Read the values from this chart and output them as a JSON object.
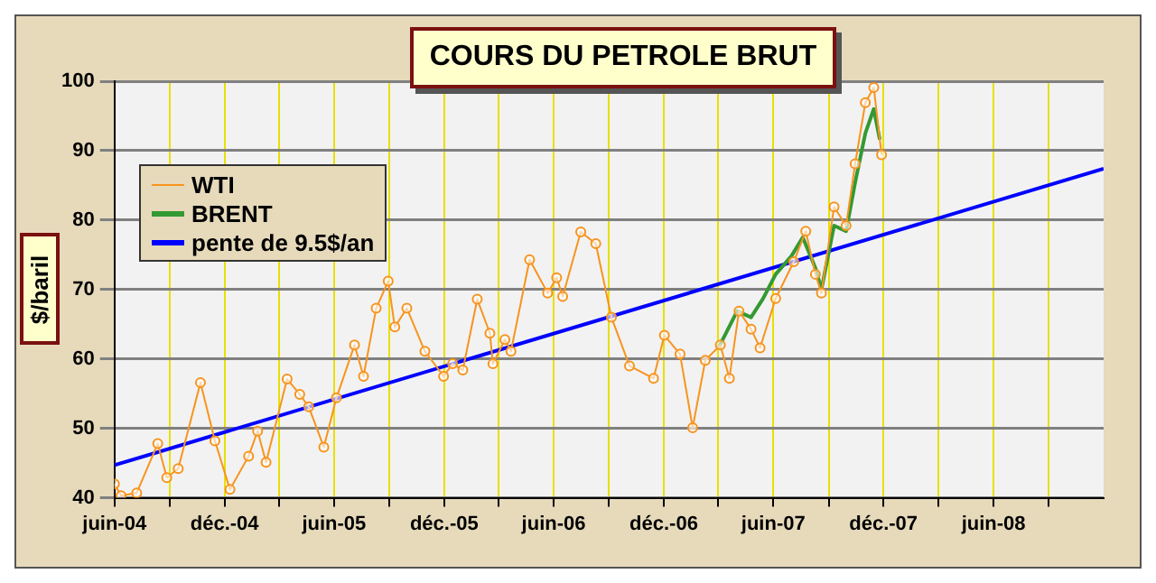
{
  "chart_data": {
    "type": "line",
    "title": "COURS DU PETROLE BRUT",
    "ylabel": "$/baril",
    "xlim": [
      "2004-06-01",
      "2008-12-01"
    ],
    "xticks": [
      {
        "value": "2004-06-01",
        "label": "juin-04"
      },
      {
        "value": "2004-09-01",
        "label": null
      },
      {
        "value": "2004-12-01",
        "label": "déc.-04"
      },
      {
        "value": "2005-03-01",
        "label": null
      },
      {
        "value": "2005-06-01",
        "label": "juin-05"
      },
      {
        "value": "2005-09-01",
        "label": null
      },
      {
        "value": "2005-12-01",
        "label": "déc.-05"
      },
      {
        "value": "2006-03-01",
        "label": null
      },
      {
        "value": "2006-06-01",
        "label": "juin-06"
      },
      {
        "value": "2006-09-01",
        "label": null
      },
      {
        "value": "2006-12-01",
        "label": "déc.-06"
      },
      {
        "value": "2007-03-01",
        "label": null
      },
      {
        "value": "2007-06-01",
        "label": "juin-07"
      },
      {
        "value": "2007-09-01",
        "label": null
      },
      {
        "value": "2007-12-01",
        "label": "déc.-07"
      },
      {
        "value": "2008-03-01",
        "label": null
      },
      {
        "value": "2008-06-01",
        "label": "juin-08"
      },
      {
        "value": "2008-09-01",
        "label": null
      }
    ],
    "ylim": [
      40,
      100
    ],
    "yticks": [
      40,
      50,
      60,
      70,
      80,
      90,
      100
    ],
    "grid": true,
    "legend": "top left",
    "series": [
      {
        "name": "WTI",
        "color": "#f7941d",
        "marker": "circle",
        "x": [
          "2004-06-01",
          "2004-06-12",
          "2004-07-08",
          "2004-08-12",
          "2004-08-27",
          "2004-09-15",
          "2004-10-22",
          "2004-11-15",
          "2004-12-10",
          "2005-01-10",
          "2005-01-25",
          "2005-02-08",
          "2005-03-15",
          "2005-04-05",
          "2005-04-20",
          "2005-05-15",
          "2005-06-05",
          "2005-07-05",
          "2005-07-20",
          "2005-08-10",
          "2005-08-30",
          "2005-09-10",
          "2005-09-30",
          "2005-10-30",
          "2005-11-30",
          "2005-12-15",
          "2006-01-01",
          "2006-01-25",
          "2006-02-15",
          "2006-02-20",
          "2006-03-12",
          "2006-03-22",
          "2006-04-22",
          "2006-05-22",
          "2006-06-06",
          "2006-06-16",
          "2006-07-16",
          "2006-08-10",
          "2006-09-05",
          "2006-10-05",
          "2006-11-14",
          "2006-12-02",
          "2006-12-28",
          "2007-01-18",
          "2007-02-08",
          "2007-03-05",
          "2007-03-20",
          "2007-04-05",
          "2007-04-25",
          "2007-05-10",
          "2007-06-05",
          "2007-07-05",
          "2007-07-25",
          "2007-08-10",
          "2007-08-20",
          "2007-09-10",
          "2007-09-30",
          "2007-10-15",
          "2007-11-01",
          "2007-11-15",
          "2007-11-28"
        ],
        "values": [
          42.0,
          40.3,
          40.7,
          47.8,
          42.9,
          44.2,
          56.6,
          48.2,
          41.2,
          46.0,
          49.6,
          45.1,
          57.1,
          54.9,
          53.1,
          47.3,
          54.4,
          62.0,
          57.5,
          67.3,
          71.2,
          64.6,
          67.3,
          61.1,
          57.5,
          59.3,
          58.4,
          68.6,
          63.7,
          59.3,
          62.8,
          61.1,
          74.3,
          69.5,
          71.7,
          69.0,
          78.3,
          76.6,
          66.0,
          59.0,
          57.2,
          63.4,
          60.7,
          50.1,
          59.8,
          62.0,
          57.2,
          66.9,
          64.3,
          61.6,
          68.7,
          74.0,
          78.4,
          72.2,
          69.5,
          81.9,
          79.2,
          88.1,
          96.9,
          99.1,
          89.4
        ]
      },
      {
        "name": "BRENT",
        "color": "#339933",
        "marker": "none",
        "x": [
          "2007-03-02",
          "2007-04-02",
          "2007-04-25",
          "2007-05-15",
          "2007-06-05",
          "2007-07-01",
          "2007-07-20",
          "2007-08-10",
          "2007-08-20",
          "2007-09-10",
          "2007-09-30",
          "2007-10-15",
          "2007-11-01",
          "2007-11-15",
          "2007-11-25"
        ],
        "values": [
          61.6,
          66.9,
          66.0,
          68.7,
          72.2,
          74.8,
          77.5,
          73.1,
          70.0,
          79.2,
          78.4,
          85.4,
          92.5,
          96.0,
          91.6
        ]
      },
      {
        "name": "pente de 9.5$/an",
        "color": "#0000ff",
        "marker": "none",
        "x": [
          "2004-06-01",
          "2008-12-01"
        ],
        "values": [
          44.7,
          87.4
        ]
      }
    ]
  }
}
